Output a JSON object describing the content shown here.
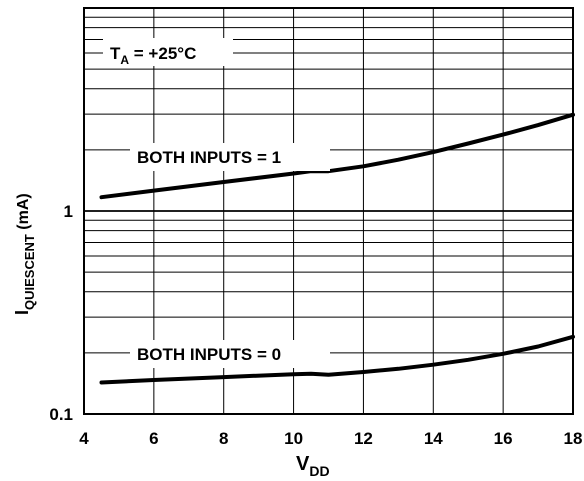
{
  "chart_data": {
    "type": "line",
    "title": "",
    "xlabel": "V",
    "xlabel_sub": "DD",
    "ylabel": "I",
    "ylabel_sub": "QUIESCENT",
    "ylabel_unit": " (mA)",
    "xlim": [
      4,
      18
    ],
    "ylim": [
      0.1,
      10
    ],
    "yscale": "log",
    "grid": true,
    "x_ticks": [
      4,
      6,
      8,
      10,
      12,
      14,
      16,
      18
    ],
    "x_tick_labels": [
      "4",
      "6",
      "8",
      "10",
      "12",
      "14",
      "16",
      "18"
    ],
    "y_ticks": [
      0.1,
      1
    ],
    "y_tick_labels": [
      "0.1",
      "1"
    ],
    "annotation": {
      "main": "T",
      "sub": "A",
      "rest": " = +25°C"
    },
    "series": [
      {
        "name": "BOTH INPUTS = 1",
        "x": [
          4.5,
          6,
          8,
          10,
          10.5,
          11,
          12,
          13,
          14,
          15,
          16,
          17,
          18
        ],
        "y": [
          1.17,
          1.26,
          1.39,
          1.53,
          1.57,
          1.57,
          1.66,
          1.79,
          1.95,
          2.15,
          2.38,
          2.65,
          2.98
        ]
      },
      {
        "name": "BOTH INPUTS = 0",
        "x": [
          4.5,
          6,
          8,
          10,
          10.5,
          11,
          12,
          13,
          14,
          15,
          16,
          17,
          18
        ],
        "y": [
          0.143,
          0.147,
          0.152,
          0.157,
          0.158,
          0.156,
          0.161,
          0.167,
          0.175,
          0.185,
          0.198,
          0.215,
          0.24
        ]
      }
    ]
  }
}
